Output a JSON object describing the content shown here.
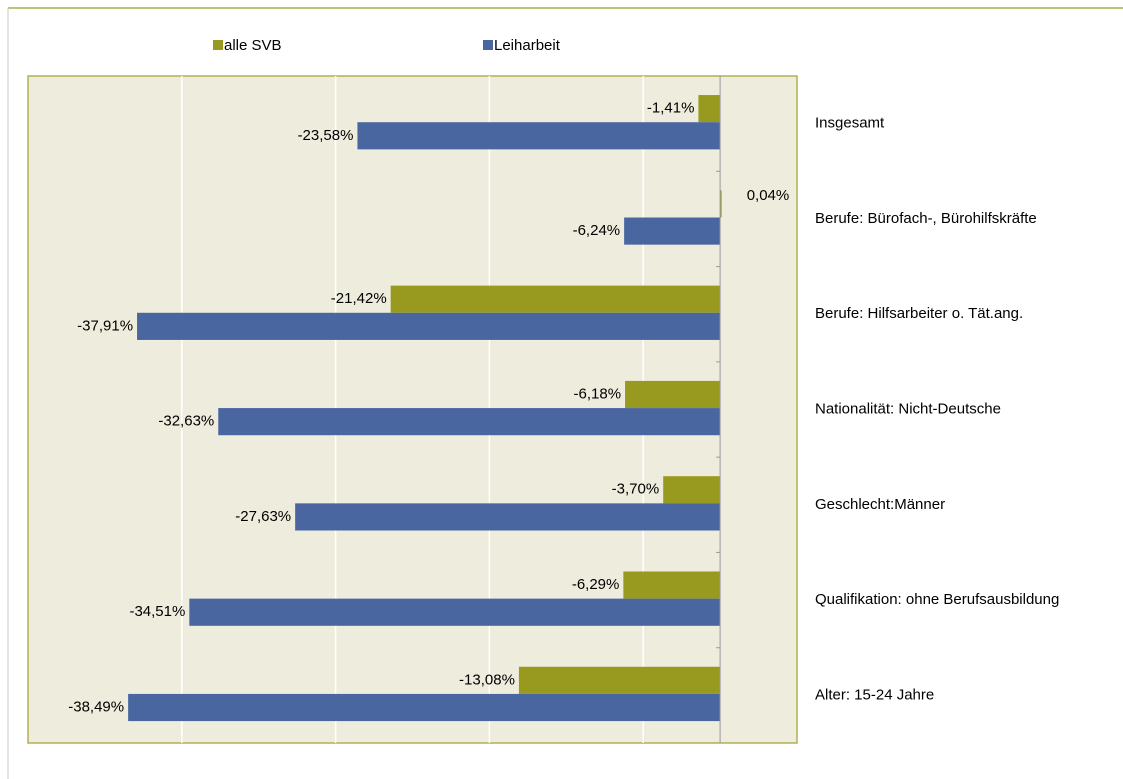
{
  "chart_data": {
    "type": "bar",
    "orientation": "horizontal",
    "categories": [
      "Insgesamt",
      "Berufe: Bürofach-, Bürohilfskräfte",
      "Berufe: Hilfsarbeiter o. Tät.ang.",
      "Nationalität:  Nicht-Deutsche",
      "Geschlecht:Männer",
      "Qualifikation: ohne Berufsausbildung",
      "Alter: 15-24 Jahre"
    ],
    "series": [
      {
        "name": "alle SVB",
        "color": "#989a1f",
        "values": [
          -1.41,
          0.04,
          -21.42,
          -6.18,
          -3.7,
          -6.29,
          -13.08
        ],
        "value_labels": [
          "-1,41%",
          "0,04%",
          "-21,42%",
          "-6,18%",
          "-3,70%",
          "-6,29%",
          "-13,08%"
        ]
      },
      {
        "name": "Leiharbeit",
        "color": "#4a66a0",
        "values": [
          -23.58,
          -6.24,
          -37.91,
          -32.63,
          -27.63,
          -34.51,
          -38.49
        ],
        "value_labels": [
          "-23,58%",
          "-6,24%",
          "-37,91%",
          "-32,63%",
          "-27,63%",
          "-34,51%",
          "-38,49%"
        ]
      }
    ],
    "xlim": [
      -45,
      5
    ],
    "gridlines": [
      -35,
      -25,
      -15,
      -5
    ],
    "grid": true
  }
}
